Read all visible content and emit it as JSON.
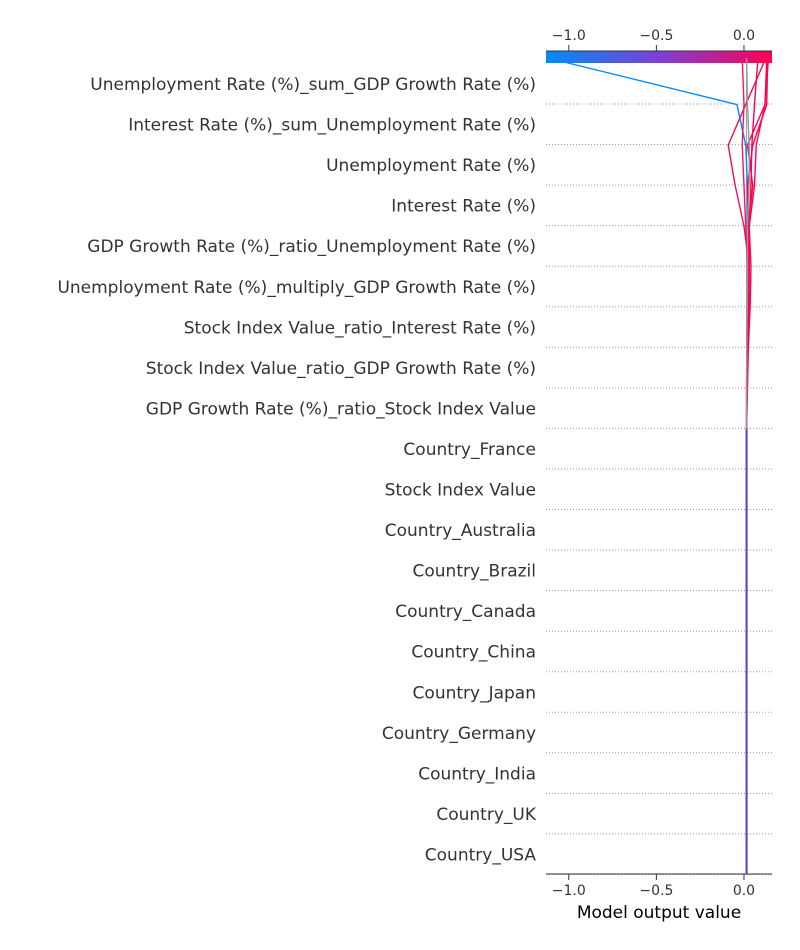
{
  "chart_data": {
    "type": "line",
    "chart_kind": "shap-decision-plot",
    "xlabel": "Model output value",
    "xlim": [
      -1.13,
      0.16
    ],
    "x_ticks": [
      -1.0,
      -0.5,
      0.0
    ],
    "x_tick_labels": [
      "−1.0",
      "−0.5",
      "0.0"
    ],
    "base_value": 0.015,
    "colormap": {
      "low": "#008bfb",
      "mid": "#7c3fd8",
      "high": "#ff0052"
    },
    "grid": "dotted horizontal rows",
    "features": [
      "Unemployment Rate (%)_sum_GDP Growth Rate (%)",
      "Interest Rate (%)_sum_Unemployment Rate (%)",
      "Unemployment Rate (%)",
      "Interest Rate (%)",
      "GDP Growth Rate (%)_ratio_Unemployment Rate (%)",
      "Unemployment Rate (%)_multiply_GDP Growth Rate (%)",
      "Stock Index Value_ratio_Interest Rate (%)",
      "Stock Index Value_ratio_GDP Growth Rate (%)",
      "GDP Growth Rate (%)_ratio_Stock Index Value",
      "Country_France",
      "Stock Index Value",
      "Country_Australia",
      "Country_Brazil",
      "Country_Canada",
      "Country_China",
      "Country_Japan",
      "Country_Germany",
      "Country_India",
      "Country_UK",
      "Country_USA"
    ],
    "series": [
      {
        "values": [
          0.015,
          0.015,
          0.015,
          0.015,
          0.015,
          0.015,
          0.015,
          0.015,
          0.015,
          0.015,
          0.015,
          0.018,
          0.018,
          0.022,
          0.022,
          0.02,
          0.02,
          0.01,
          -0.04,
          -1.12
        ],
        "color": "#008bfb"
      },
      {
        "values": [
          0.015,
          0.015,
          0.015,
          0.015,
          0.015,
          0.015,
          0.015,
          0.015,
          0.015,
          0.015,
          0.015,
          0.018,
          0.02,
          0.03,
          0.03,
          0.025,
          0.05,
          0.02,
          0.12,
          0.14
        ],
        "color": "#ff0052"
      },
      {
        "values": [
          0.015,
          0.015,
          0.015,
          0.015,
          0.015,
          0.015,
          0.015,
          0.015,
          0.015,
          0.015,
          0.015,
          0.02,
          0.025,
          0.035,
          0.04,
          0.03,
          0.02,
          0.05,
          0.13,
          0.135
        ],
        "color": "#ff0052"
      },
      {
        "values": [
          0.015,
          0.015,
          0.015,
          0.015,
          0.015,
          0.015,
          0.015,
          0.015,
          0.015,
          0.015,
          0.015,
          0.016,
          0.018,
          0.025,
          0.03,
          0.0,
          -0.05,
          -0.09,
          0.01,
          0.125
        ],
        "color": "#e8115a"
      },
      {
        "values": [
          0.015,
          0.015,
          0.015,
          0.015,
          0.015,
          0.015,
          0.015,
          0.015,
          0.015,
          0.015,
          0.015,
          0.016,
          0.018,
          0.02,
          0.02,
          0.03,
          0.06,
          0.07,
          0.12,
          0.13
        ],
        "color": "#ff0052"
      },
      {
        "values": [
          0.015,
          0.015,
          0.015,
          0.015,
          0.015,
          0.015,
          0.015,
          0.015,
          0.015,
          0.015,
          0.015,
          0.015,
          0.016,
          0.018,
          0.02,
          0.01,
          0.0,
          -0.01,
          0.0,
          -0.01
        ],
        "color": "#ea1963"
      },
      {
        "values": [
          0.015,
          0.015,
          0.015,
          0.015,
          0.015,
          0.015,
          0.015,
          0.015,
          0.015,
          0.015,
          0.015,
          0.015,
          0.016,
          0.02,
          0.03,
          0.03,
          0.04,
          0.045,
          0.06,
          0.08
        ],
        "color": "#ff0052"
      },
      {
        "values": [
          0.015,
          0.015,
          0.015,
          0.015,
          0.015,
          0.015,
          0.015,
          0.015,
          0.015,
          0.015,
          0.015,
          0.015,
          0.016,
          0.018,
          0.02,
          0.02,
          0.03,
          0.03,
          0.02,
          0.015
        ],
        "color": "#999999"
      }
    ]
  }
}
